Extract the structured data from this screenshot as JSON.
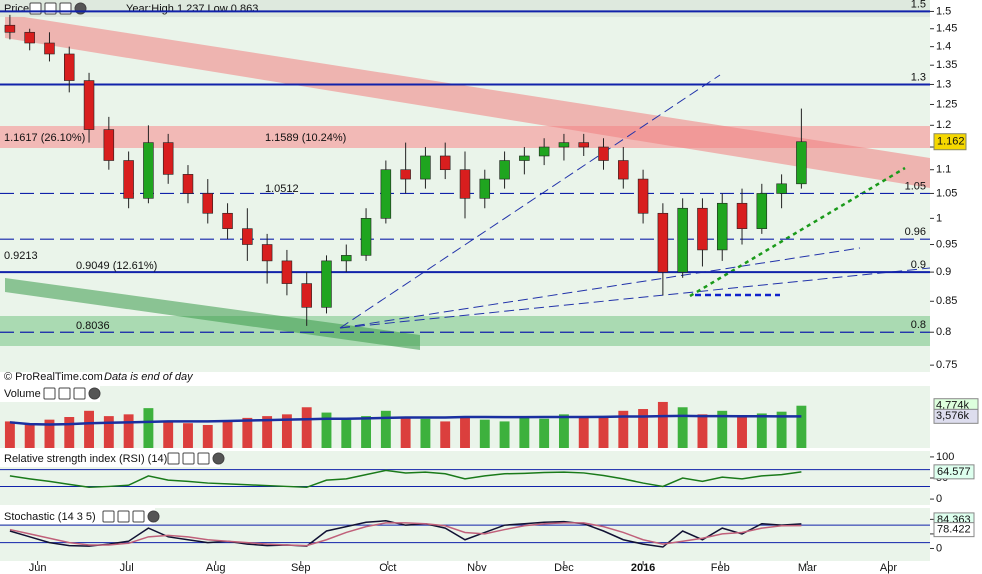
{
  "chart_data": [
    {
      "type": "candlestick",
      "title": "Price",
      "subtitle": "Year:High 1.237 Low 0.863",
      "log": true,
      "xlim": [
        -0.5,
        46.5
      ],
      "xticks": [
        {
          "value": 1.4,
          "label": "Jun"
        },
        {
          "value": 5.9,
          "label": "Jul"
        },
        {
          "value": 10.4,
          "label": "Aug"
        },
        {
          "value": 14.7,
          "label": "Sep"
        },
        {
          "value": 19.1,
          "label": "Oct"
        },
        {
          "value": 23.6,
          "label": "Nov"
        },
        {
          "value": 28,
          "label": "Dec"
        },
        {
          "value": 32,
          "label": "2016"
        },
        {
          "value": 35.9,
          "label": "Feb"
        },
        {
          "value": 40.3,
          "label": "Mar"
        },
        {
          "value": 44.4,
          "label": "Apr"
        }
      ],
      "ylim": [
        0.74,
        1.525
      ],
      "yticks": [
        0.75,
        0.8,
        0.85,
        0.9,
        0.95,
        1,
        1.05,
        1.1,
        1.15,
        1.2,
        1.25,
        1.3,
        1.35,
        1.4,
        1.45,
        1.5
      ],
      "open": [
        1.46,
        1.44,
        1.41,
        1.38,
        1.31,
        1.19,
        1.12,
        1.04,
        1.16,
        1.09,
        1.05,
        1.01,
        0.98,
        0.95,
        0.92,
        0.88,
        0.84,
        0.92,
        0.93,
        1.0,
        1.1,
        1.08,
        1.13,
        1.1,
        1.04,
        1.08,
        1.12,
        1.13,
        1.15,
        1.16,
        1.15,
        1.12,
        1.08,
        1.01,
        0.9,
        1.02,
        0.94,
        1.03,
        0.98,
        1.05,
        1.07
      ],
      "high": [
        1.49,
        1.45,
        1.44,
        1.4,
        1.33,
        1.22,
        1.14,
        1.2,
        1.18,
        1.11,
        1.08,
        1.03,
        1.02,
        0.97,
        0.94,
        0.9,
        0.93,
        0.95,
        1.02,
        1.12,
        1.16,
        1.15,
        1.16,
        1.14,
        1.1,
        1.14,
        1.15,
        1.17,
        1.18,
        1.18,
        1.17,
        1.15,
        1.1,
        1.03,
        1.04,
        1.04,
        1.05,
        1.06,
        1.07,
        1.09,
        1.24
      ],
      "low": [
        1.42,
        1.39,
        1.36,
        1.28,
        1.16,
        1.1,
        1.02,
        1.03,
        1.07,
        1.03,
        0.99,
        0.96,
        0.92,
        0.88,
        0.86,
        0.81,
        0.83,
        0.9,
        0.92,
        0.99,
        1.05,
        1.06,
        1.08,
        1.0,
        1.02,
        1.06,
        1.09,
        1.11,
        1.12,
        1.13,
        1.1,
        1.06,
        0.99,
        0.86,
        0.89,
        0.91,
        0.92,
        0.95,
        0.97,
        1.02,
        1.06
      ],
      "close": [
        1.44,
        1.41,
        1.38,
        1.31,
        1.19,
        1.12,
        1.04,
        1.16,
        1.09,
        1.05,
        1.01,
        0.98,
        0.95,
        0.92,
        0.88,
        0.84,
        0.92,
        0.93,
        1.0,
        1.1,
        1.08,
        1.13,
        1.1,
        1.04,
        1.08,
        1.12,
        1.13,
        1.15,
        1.16,
        1.15,
        1.12,
        1.08,
        1.01,
        0.9,
        1.02,
        0.94,
        1.03,
        0.98,
        1.05,
        1.07,
        1.162
      ],
      "up_color": "#1fa51f",
      "down_color": "#d81e1e",
      "hlines": [
        {
          "value": 1.5,
          "style": "solid"
        },
        {
          "value": 1.3,
          "style": "solid"
        },
        {
          "value": 1.05,
          "style": "dashed"
        },
        {
          "value": 0.96,
          "style": "dashed"
        },
        {
          "value": 0.9,
          "style": "solid"
        },
        {
          "value": 0.8,
          "style": "dashed"
        }
      ],
      "annotations": [
        "1.1617 (26.10%)",
        "1.1589 (10.24%)",
        "1.0512",
        "0.9213",
        "0.9049 (12.61%)",
        "0.8036"
      ],
      "footer": "© ProRealTime.com",
      "footer_note": "Data is end of day"
    },
    {
      "type": "bar",
      "title": "Volume",
      "ylim": [
        0,
        7000
      ],
      "values": [
        3000,
        2800,
        3200,
        3500,
        4200,
        3600,
        3800,
        4500,
        3000,
        2800,
        2600,
        3000,
        3400,
        3600,
        3800,
        4600,
        4000,
        3200,
        3600,
        4200,
        3500,
        3300,
        3000,
        3600,
        3200,
        3000,
        3400,
        3300,
        3800,
        3500,
        3600,
        4200,
        4400,
        5200,
        4600,
        3800,
        4200,
        3700,
        3900,
        4100,
        4774
      ],
      "ma_values": [
        2900,
        2700,
        2650,
        2700,
        2800,
        2850,
        2900,
        2950,
        3000,
        3000,
        3000,
        3050,
        3100,
        3150,
        3200,
        3250,
        3300,
        3300,
        3350,
        3400,
        3450,
        3450,
        3450,
        3500,
        3500,
        3480,
        3480,
        3500,
        3500,
        3500,
        3520,
        3550,
        3550,
        3600,
        3620,
        3600,
        3600,
        3580,
        3580,
        3570,
        3576
      ],
      "ma_color": "#1a2fa0",
      "tags": [
        {
          "value": 4774,
          "label": "4,774k"
        },
        {
          "value": 3576,
          "label": "3,576k"
        }
      ]
    },
    {
      "type": "line",
      "title": "Relative strength index (RSI) (14)",
      "ylim": [
        -14,
        114
      ],
      "yticks": [
        0,
        50,
        100
      ],
      "levels": [
        30,
        70
      ],
      "color": "#1a7a1a",
      "values": [
        55,
        48,
        42,
        35,
        28,
        30,
        33,
        55,
        45,
        42,
        38,
        36,
        34,
        32,
        30,
        28,
        45,
        48,
        58,
        68,
        62,
        64,
        60,
        48,
        55,
        60,
        61,
        63,
        64,
        62,
        56,
        48,
        38,
        30,
        50,
        42,
        52,
        48,
        55,
        58,
        64.577
      ]
    },
    {
      "type": "line",
      "title": "Stochastic (14 3 5)",
      "ylim": [
        -43,
        139
      ],
      "yticks": [
        0,
        50,
        100
      ],
      "levels": [
        20,
        80
      ],
      "series": [
        {
          "color": "#111133",
          "values": [
            60,
            40,
            20,
            10,
            8,
            15,
            25,
            70,
            40,
            30,
            20,
            25,
            15,
            10,
            12,
            8,
            60,
            75,
            90,
            95,
            80,
            85,
            70,
            30,
            55,
            80,
            85,
            90,
            92,
            85,
            60,
            30,
            15,
            5,
            60,
            30,
            70,
            50,
            85,
            80,
            84.363
          ]
        },
        {
          "color": "#c0607a",
          "values": [
            65,
            50,
            35,
            20,
            12,
            12,
            18,
            40,
            45,
            40,
            30,
            25,
            20,
            15,
            12,
            10,
            30,
            55,
            75,
            88,
            88,
            85,
            78,
            55,
            50,
            65,
            78,
            85,
            88,
            88,
            75,
            55,
            30,
            15,
            25,
            35,
            50,
            55,
            70,
            78,
            78.422
          ]
        }
      ]
    }
  ]
}
